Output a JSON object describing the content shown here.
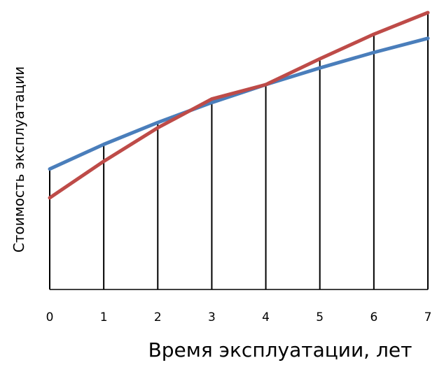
{
  "chart_data": {
    "type": "line",
    "title": "",
    "xlabel": "Время эксплуатации, лет",
    "ylabel": "Стоимость эксплуатации",
    "x": [
      0,
      1,
      2,
      3,
      4,
      5,
      6,
      7
    ],
    "xlim": [
      0,
      7
    ],
    "ylim": [
      0,
      100
    ],
    "grid": false,
    "legend": "none",
    "drop_lines": true,
    "series": [
      {
        "color": "#4a7ebb",
        "values": [
          43.5,
          52.4,
          60.3,
          67.5,
          74.0,
          80.0,
          85.6,
          90.7
        ]
      },
      {
        "color": "#be4b48",
        "values": [
          33.1,
          46.3,
          58.4,
          68.8,
          74.0,
          83.3,
          92.2,
          100.0
        ]
      }
    ]
  }
}
